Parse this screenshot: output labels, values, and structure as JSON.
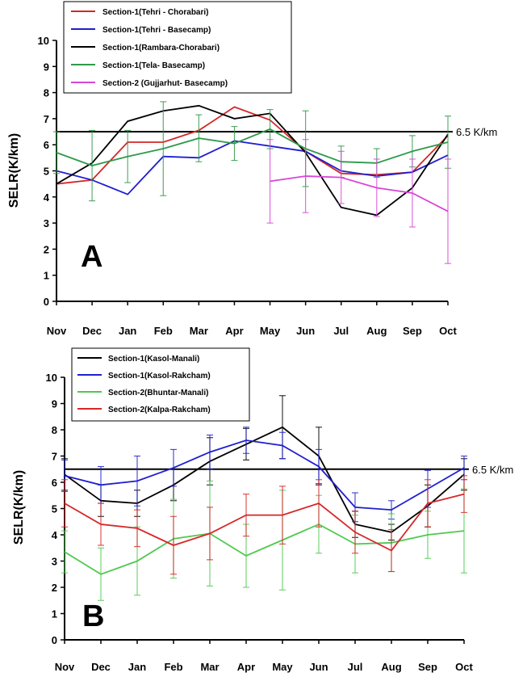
{
  "chart_data": [
    {
      "type": "line",
      "panel_label": "A",
      "ylabel": "SELR(K/km)",
      "xlabel": "",
      "categories": [
        "Nov",
        "Dec",
        "Jan",
        "Feb",
        "Mar",
        "Apr",
        "May",
        "Jun",
        "Jul",
        "Aug",
        "Sep",
        "Oct"
      ],
      "ylim": [
        0,
        10
      ],
      "yticks": [
        0,
        1,
        2,
        3,
        4,
        5,
        6,
        7,
        8,
        9,
        10
      ],
      "reference_line": {
        "value": 6.5,
        "label": "6.5 K/km",
        "color": "#000000"
      },
      "legend_position": "top-left",
      "series": [
        {
          "name": "Section-1(Tehri - Chorabari)",
          "color": "#d62728",
          "values": [
            4.5,
            4.65,
            6.1,
            6.1,
            6.55,
            7.45,
            6.95,
            5.75,
            4.9,
            4.85,
            4.95,
            6.35
          ],
          "errors": [
            0,
            0,
            0,
            0,
            0,
            0,
            0,
            0,
            0,
            0,
            0,
            0
          ]
        },
        {
          "name": "Section-1(Tehri - Basecamp)",
          "color": "#1f1fd0",
          "values": [
            5.0,
            4.65,
            4.1,
            5.55,
            5.5,
            6.15,
            5.95,
            5.75,
            5.0,
            4.8,
            4.95,
            5.6
          ],
          "errors": [
            0,
            0,
            0,
            0,
            0,
            0,
            0,
            0,
            0,
            0,
            0,
            0
          ]
        },
        {
          "name": "Section-1(Rambara-Chorabari)",
          "color": "#000000",
          "values": [
            4.5,
            5.3,
            6.9,
            7.3,
            7.5,
            7.0,
            7.2,
            5.7,
            3.6,
            3.3,
            4.35,
            6.4
          ],
          "errors": [
            0,
            0,
            0,
            0,
            0,
            0,
            0,
            0,
            0,
            0,
            0,
            0
          ]
        },
        {
          "name": "Section-1(Tela- Basecamp)",
          "color": "#2e9a4a",
          "values": [
            5.7,
            5.2,
            5.55,
            5.85,
            6.25,
            6.05,
            6.6,
            5.85,
            5.35,
            5.3,
            5.75,
            6.1
          ],
          "errors": [
            0.8,
            1.35,
            1.0,
            1.8,
            0.9,
            0.65,
            0.75,
            1.45,
            0.6,
            0.55,
            0.6,
            1.0
          ]
        },
        {
          "name": "Section-2 (Gujjarhut- Basecamp)",
          "color": "#d946d9",
          "values": [
            null,
            null,
            null,
            null,
            null,
            null,
            4.6,
            4.8,
            4.75,
            4.35,
            4.15,
            3.45
          ],
          "errors": [
            0,
            0,
            0,
            0,
            0,
            0,
            1.6,
            1.4,
            1.0,
            1.1,
            1.3,
            2.0
          ]
        }
      ]
    },
    {
      "type": "line",
      "panel_label": "B",
      "ylabel": "SELR(K/km)",
      "xlabel": "",
      "categories": [
        "Nov",
        "Dec",
        "Jan",
        "Feb",
        "Mar",
        "Apr",
        "May",
        "Jun",
        "Jul",
        "Aug",
        "Sep",
        "Oct"
      ],
      "ylim": [
        0,
        10
      ],
      "yticks": [
        0,
        1,
        2,
        3,
        4,
        5,
        6,
        7,
        8,
        9,
        10
      ],
      "reference_line": {
        "value": 6.5,
        "label": "6.5 K/km",
        "color": "#000000"
      },
      "legend_position": "top-left",
      "series": [
        {
          "name": "Section-1(Kasol-Manali)",
          "color": "#000000",
          "values": [
            6.3,
            5.3,
            5.2,
            5.9,
            6.8,
            7.45,
            8.1,
            7.0,
            4.4,
            4.1,
            5.1,
            6.3
          ],
          "errors": [
            0.6,
            0.6,
            0.5,
            0.6,
            0.9,
            0.6,
            1.2,
            1.1,
            0.5,
            0.3,
            0.8,
            0.6
          ]
        },
        {
          "name": "Section-1(Kasol-Rakcham)",
          "color": "#1f1fd0",
          "values": [
            6.25,
            5.9,
            6.05,
            6.55,
            7.15,
            7.6,
            7.4,
            6.6,
            5.05,
            4.95,
            5.75,
            6.55
          ],
          "errors": [
            0.6,
            0.7,
            0.95,
            0.7,
            0.65,
            0.5,
            0.5,
            0.65,
            0.55,
            0.35,
            0.7,
            0.45
          ]
        },
        {
          "name": "Section-2(Bhuntar-Manali)",
          "color": "#4fc94f",
          "values": [
            3.35,
            2.5,
            3.0,
            3.85,
            4.05,
            3.2,
            3.8,
            4.4,
            3.65,
            3.7,
            4.0,
            4.15
          ],
          "errors": [
            0.8,
            1.0,
            1.3,
            1.5,
            2.0,
            1.2,
            1.9,
            1.1,
            1.1,
            1.1,
            0.9,
            1.6
          ]
        },
        {
          "name": "Section-2(Kalpa-Rakcham)",
          "color": "#d62728",
          "values": [
            5.2,
            4.4,
            4.25,
            3.6,
            4.05,
            4.75,
            4.75,
            5.2,
            4.1,
            3.4,
            5.2,
            5.55
          ],
          "errors": [
            0.9,
            0.8,
            0.7,
            1.1,
            1.0,
            0.8,
            1.1,
            0.9,
            0.8,
            0.8,
            0.9,
            0.7
          ]
        }
      ]
    }
  ]
}
